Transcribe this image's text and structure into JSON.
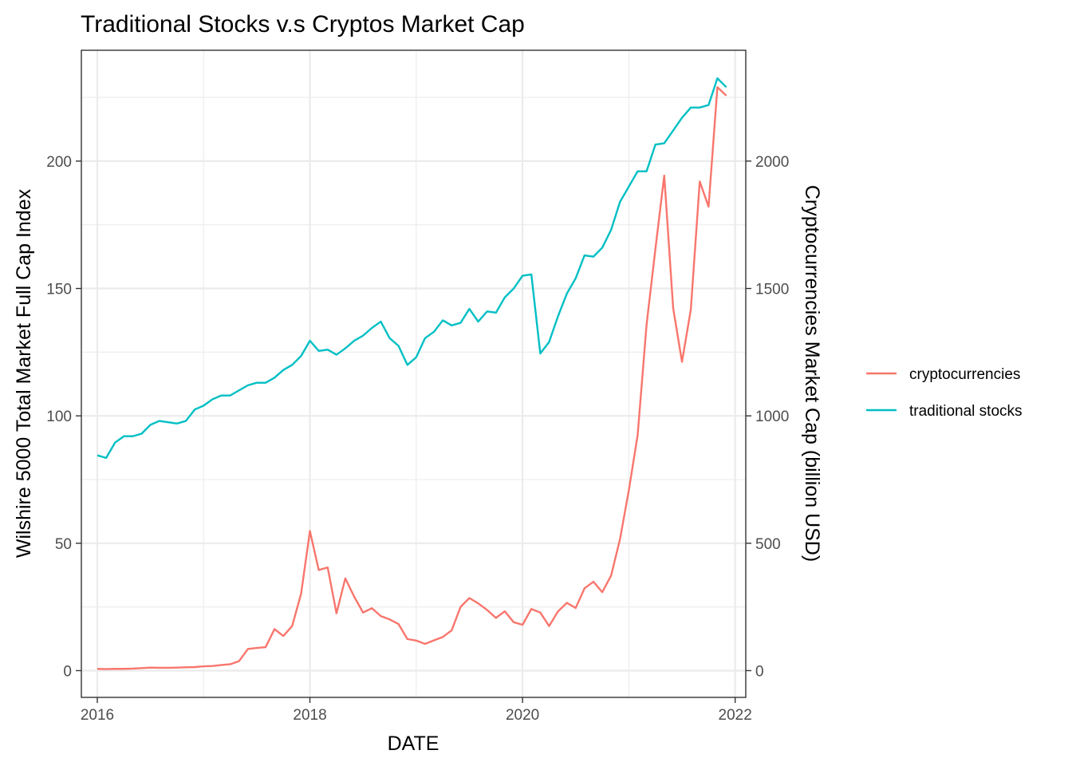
{
  "chart_data": {
    "type": "line",
    "title": "Traditional Stocks v.s Cryptos Market Cap",
    "xlabel": "DATE",
    "ylabel": "Wilshire 5000 Total Market Full Cap Index",
    "y2label": "Cryptocurrencies Market Cap (billion USD)",
    "xlim": [
      2015.85,
      2022.1
    ],
    "ylim": [
      -10.5,
      243.5
    ],
    "y2lim": [
      -105,
      2435
    ],
    "x_ticks": [
      2016,
      2018,
      2020,
      2022
    ],
    "x_tick_labels": [
      "2016",
      "2018",
      "2020",
      "2022"
    ],
    "y_ticks": [
      0,
      50,
      100,
      150,
      200
    ],
    "y_tick_labels": [
      "0",
      "50",
      "100",
      "150",
      "200"
    ],
    "y2_ticks": [
      0,
      500,
      1000,
      1500,
      2000
    ],
    "y2_tick_labels": [
      "0",
      "500",
      "1000",
      "1500",
      "2000"
    ],
    "grid": true,
    "legend_position": "right",
    "legend": [
      "cryptocurrencies",
      "traditional stocks"
    ],
    "colors": {
      "cryptocurrencies": "#F8766D",
      "traditional stocks": "#00BFC4"
    },
    "x": [
      2016.0,
      2016.083,
      2016.167,
      2016.25,
      2016.333,
      2016.417,
      2016.5,
      2016.583,
      2016.667,
      2016.75,
      2016.833,
      2016.917,
      2017.0,
      2017.083,
      2017.167,
      2017.25,
      2017.333,
      2017.417,
      2017.5,
      2017.583,
      2017.667,
      2017.75,
      2017.833,
      2017.917,
      2018.0,
      2018.083,
      2018.167,
      2018.25,
      2018.333,
      2018.417,
      2018.5,
      2018.583,
      2018.667,
      2018.75,
      2018.833,
      2018.917,
      2019.0,
      2019.083,
      2019.167,
      2019.25,
      2019.333,
      2019.417,
      2019.5,
      2019.583,
      2019.667,
      2019.75,
      2019.833,
      2019.917,
      2020.0,
      2020.083,
      2020.167,
      2020.25,
      2020.333,
      2020.417,
      2020.5,
      2020.583,
      2020.667,
      2020.75,
      2020.833,
      2020.917,
      2021.0,
      2021.083,
      2021.167,
      2021.25,
      2021.333,
      2021.417,
      2021.5,
      2021.583,
      2021.667,
      2021.75,
      2021.833,
      2021.917
    ],
    "series": [
      {
        "name": "traditional stocks",
        "axis": "left",
        "values": [
          84.5,
          83.5,
          89.5,
          92.0,
          92.0,
          93.0,
          96.5,
          98.0,
          97.5,
          97.0,
          98.0,
          102.5,
          104.0,
          106.5,
          108.0,
          108.0,
          110.0,
          112.0,
          113.0,
          113.0,
          115.0,
          118.0,
          120.0,
          123.5,
          129.5,
          125.5,
          126.0,
          124.0,
          126.5,
          129.5,
          131.5,
          134.5,
          137.0,
          130.5,
          127.5,
          120.0,
          123.0,
          130.5,
          133.0,
          137.5,
          135.5,
          136.5,
          142.0,
          137.0,
          141.0,
          140.5,
          146.5,
          150.0,
          155.0,
          155.5,
          124.5,
          129.0,
          139.0,
          148.0,
          154.0,
          163.0,
          162.5,
          166.0,
          173.0,
          184.0,
          190.0,
          196.0,
          196.0,
          206.5,
          207.0,
          212.0,
          217.0,
          221.0,
          221.0,
          222.0,
          232.5,
          229.0
        ]
      },
      {
        "name": "cryptocurrencies",
        "axis": "right",
        "values": [
          7,
          6,
          7,
          7,
          8,
          10,
          12,
          11,
          11,
          12,
          13,
          14,
          17,
          18,
          22,
          25,
          37,
          85,
          89,
          92,
          163,
          136,
          175,
          302,
          548,
          395,
          405,
          225,
          362,
          290,
          228,
          245,
          214,
          201,
          183,
          124,
          118,
          105,
          119,
          132,
          158,
          250,
          285,
          264,
          238,
          207,
          233,
          190,
          180,
          242,
          228,
          175,
          232,
          266,
          246,
          323,
          349,
          308,
          373,
          516,
          708,
          925,
          1359,
          1655,
          1943,
          1423,
          1212,
          1417,
          1920,
          1821,
          2290,
          2257
        ]
      }
    ]
  }
}
